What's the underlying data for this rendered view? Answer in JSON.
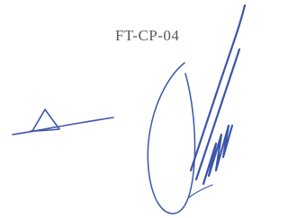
{
  "document": {
    "code": "FT-CP-04"
  }
}
